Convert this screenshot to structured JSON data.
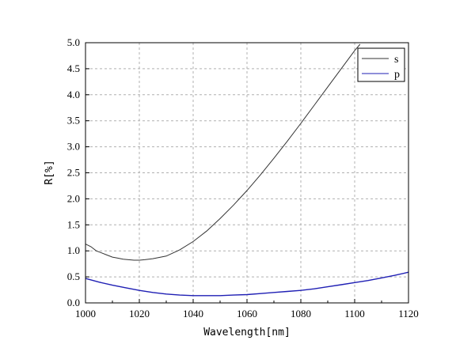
{
  "chart_data": {
    "type": "line",
    "title": "",
    "xlabel": "Wavelength[nm]",
    "ylabel": "R[%]",
    "xlim": [
      1000,
      1120
    ],
    "ylim": [
      0,
      5.0
    ],
    "x_ticks": [
      "1000",
      "1020",
      "1040",
      "1060",
      "1080",
      "1100",
      "1120"
    ],
    "y_ticks": [
      "0.0",
      "0.5",
      "1.0",
      "1.5",
      "2.0",
      "2.5",
      "3.0",
      "3.5",
      "4.0",
      "4.5",
      "5.0"
    ],
    "grid": true,
    "legend_position": "top-right",
    "series": [
      {
        "name": "s",
        "color": "#333333",
        "x": [
          1000,
          1002,
          1004,
          1006,
          1008,
          1010,
          1012,
          1014,
          1016,
          1018,
          1020,
          1022,
          1025,
          1030,
          1035,
          1040,
          1045,
          1050,
          1055,
          1060,
          1065,
          1070,
          1075,
          1080,
          1085,
          1090,
          1095,
          1100,
          1102
        ],
        "y": [
          1.13,
          1.08,
          1.0,
          0.96,
          0.92,
          0.88,
          0.86,
          0.84,
          0.83,
          0.82,
          0.82,
          0.83,
          0.85,
          0.9,
          1.02,
          1.18,
          1.38,
          1.62,
          1.88,
          2.16,
          2.46,
          2.78,
          3.11,
          3.45,
          3.8,
          4.15,
          4.5,
          4.85,
          4.97
        ]
      },
      {
        "name": "p",
        "color": "#1f1fb4",
        "x": [
          1000,
          1005,
          1010,
          1015,
          1020,
          1025,
          1030,
          1035,
          1040,
          1045,
          1050,
          1055,
          1060,
          1065,
          1070,
          1075,
          1080,
          1085,
          1090,
          1095,
          1100,
          1105,
          1110,
          1115,
          1120
        ],
        "y": [
          0.47,
          0.4,
          0.34,
          0.29,
          0.24,
          0.2,
          0.17,
          0.15,
          0.14,
          0.14,
          0.14,
          0.15,
          0.16,
          0.18,
          0.2,
          0.22,
          0.24,
          0.27,
          0.31,
          0.35,
          0.39,
          0.43,
          0.48,
          0.53,
          0.59
        ]
      }
    ]
  }
}
